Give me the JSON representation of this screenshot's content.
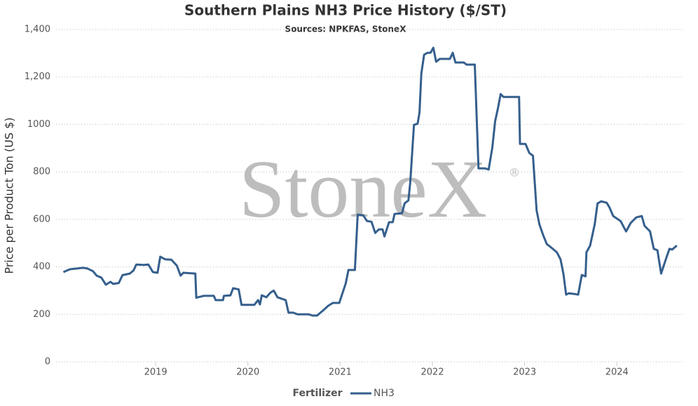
{
  "chart_data": {
    "type": "line",
    "title": "Southern Plains NH3 Price History ($/ST)",
    "subtitle": "Sources: NPKFAS, StoneX",
    "y_label": "Price per Product Ton (US $)",
    "watermark": "StoneX",
    "watermark_mark": "®",
    "legend_title": "Fertilizer",
    "x": [
      2018.0,
      2018.07,
      2018.15,
      2018.21,
      2018.26,
      2018.32,
      2018.36,
      2018.41,
      2018.46,
      2018.51,
      2018.54,
      2018.6,
      2018.64,
      2018.72,
      2018.76,
      2018.79,
      2018.87,
      2018.92,
      2018.97,
      2019.02,
      2019.05,
      2019.1,
      2019.17,
      2019.23,
      2019.27,
      2019.3,
      2019.43,
      2019.44,
      2019.49,
      2019.52,
      2019.63,
      2019.65,
      2019.73,
      2019.74,
      2019.81,
      2019.84,
      2019.9,
      2019.93,
      2020.07,
      2020.11,
      2020.13,
      2020.15,
      2020.2,
      2020.24,
      2020.28,
      2020.32,
      2020.41,
      2020.44,
      2020.49,
      2020.54,
      2020.66,
      2020.7,
      2020.75,
      2020.78,
      2020.82,
      2020.87,
      2020.92,
      2020.99,
      2021.02,
      2021.06,
      2021.09,
      2021.16,
      2021.19,
      2021.25,
      2021.29,
      2021.34,
      2021.38,
      2021.42,
      2021.46,
      2021.48,
      2021.53,
      2021.57,
      2021.59,
      2021.67,
      2021.7,
      2021.74,
      2021.76,
      2021.8,
      2021.84,
      2021.86,
      2021.88,
      2021.91,
      2021.95,
      2021.98,
      2022.01,
      2022.04,
      2022.08,
      2022.19,
      2022.22,
      2022.25,
      2022.34,
      2022.37,
      2022.46,
      2022.5,
      2022.57,
      2022.61,
      2022.65,
      2022.68,
      2022.71,
      2022.74,
      2022.77,
      2022.94,
      2022.95,
      2023.01,
      2023.05,
      2023.09,
      2023.13,
      2023.16,
      2023.2,
      2023.24,
      2023.28,
      2023.35,
      2023.39,
      2023.42,
      2023.45,
      2023.48,
      2023.54,
      2023.58,
      2023.62,
      2023.66,
      2023.67,
      2023.71,
      2023.76,
      2023.79,
      2023.83,
      2023.89,
      2023.92,
      2023.96,
      2024.04,
      2024.1,
      2024.15,
      2024.21,
      2024.27,
      2024.3,
      2024.36,
      2024.4,
      2024.44,
      2024.48,
      2024.53,
      2024.57,
      2024.6,
      2024.65
    ],
    "series": [
      {
        "name": "NH3",
        "color": "#355f8d",
        "values": [
          378,
          390,
          393,
          396,
          393,
          382,
          363,
          355,
          325,
          337,
          328,
          332,
          365,
          372,
          385,
          410,
          408,
          410,
          378,
          375,
          443,
          432,
          430,
          405,
          363,
          375,
          372,
          270,
          275,
          278,
          278,
          260,
          260,
          278,
          280,
          310,
          305,
          240,
          240,
          260,
          242,
          280,
          272,
          290,
          300,
          272,
          260,
          207,
          207,
          200,
          200,
          195,
          195,
          205,
          218,
          236,
          248,
          248,
          283,
          330,
          387,
          387,
          620,
          617,
          593,
          590,
          543,
          558,
          558,
          528,
          588,
          588,
          623,
          626,
          668,
          680,
          756,
          998,
          1003,
          1050,
          1214,
          1294,
          1302,
          1302,
          1323,
          1264,
          1276,
          1276,
          1302,
          1261,
          1261,
          1252,
          1252,
          815,
          815,
          810,
          904,
          1013,
          1066,
          1128,
          1116,
          1116,
          918,
          918,
          880,
          868,
          638,
          579,
          535,
          496,
          484,
          461,
          431,
          372,
          283,
          289,
          286,
          283,
          366,
          360,
          461,
          490,
          579,
          667,
          676,
          670,
          650,
          614,
          593,
          549,
          585,
          608,
          614,
          573,
          549,
          476,
          470,
          372,
          431,
          476,
          473,
          490
        ]
      }
    ],
    "xlim": [
      2017.92,
      2024.72
    ],
    "xticks": [
      2019,
      2020,
      2021,
      2022,
      2023,
      2024
    ],
    "ylim": [
      0,
      1400
    ],
    "yticks": [
      0,
      200,
      400,
      600,
      800,
      1000,
      {
        "value": 1200,
        "label": "1,200"
      },
      {
        "value": 1400,
        "label": "1,400"
      }
    ],
    "grid": true
  }
}
